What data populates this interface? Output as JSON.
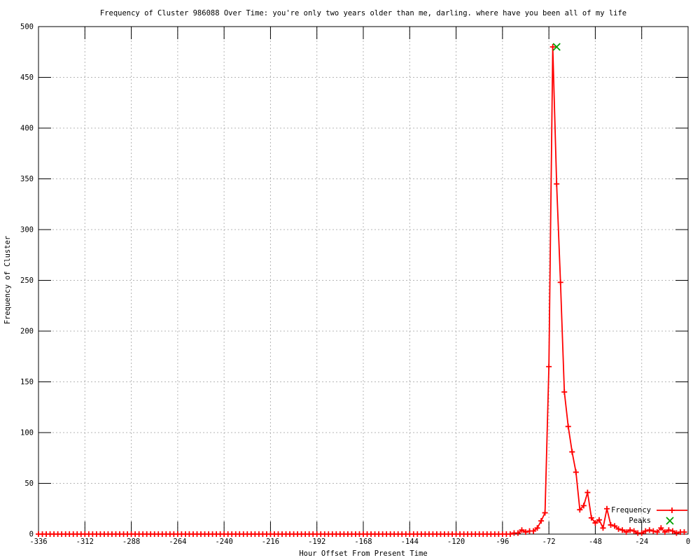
{
  "chart_data": {
    "type": "line",
    "title": "Frequency of Cluster 986088 Over Time: you're only two years older than me, darling. where have you been all of my life",
    "xlabel": "Hour Offset From Present Time",
    "ylabel": "Frequency of Cluster",
    "xlim": [
      -336,
      0
    ],
    "ylim": [
      0,
      500
    ],
    "x_ticks": [
      -336,
      -312,
      -288,
      -264,
      -240,
      -216,
      -192,
      -168,
      -144,
      -120,
      -96,
      -72,
      -48,
      -24,
      0
    ],
    "y_ticks": [
      0,
      50,
      100,
      150,
      200,
      250,
      300,
      350,
      400,
      450,
      500
    ],
    "grid": true,
    "legend_position": "bottom-right-inside",
    "series": [
      {
        "name": "Frequency",
        "color": "#ff0000",
        "marker": "plus",
        "x_start": -336,
        "x_step": 2,
        "values": [
          0,
          0,
          0,
          0,
          0,
          0,
          0,
          0,
          0,
          0,
          0,
          0,
          0,
          0,
          0,
          0,
          0,
          0,
          0,
          0,
          0,
          0,
          0,
          0,
          0,
          0,
          0,
          0,
          0,
          0,
          0,
          0,
          0,
          0,
          0,
          0,
          0,
          0,
          0,
          0,
          0,
          0,
          0,
          0,
          0,
          0,
          0,
          0,
          0,
          0,
          0,
          0,
          0,
          0,
          0,
          0,
          0,
          0,
          0,
          0,
          0,
          0,
          0,
          0,
          0,
          0,
          0,
          0,
          0,
          0,
          0,
          0,
          0,
          0,
          0,
          0,
          0,
          0,
          0,
          0,
          0,
          0,
          0,
          0,
          0,
          0,
          0,
          0,
          0,
          0,
          0,
          0,
          0,
          0,
          0,
          0,
          0,
          0,
          0,
          0,
          0,
          0,
          0,
          0,
          0,
          0,
          0,
          0,
          0,
          0,
          0,
          0,
          0,
          0,
          0,
          0,
          0,
          0,
          0,
          0,
          0,
          0,
          0,
          1,
          1,
          4,
          2,
          3,
          3,
          6,
          13,
          21,
          165,
          480,
          345,
          248,
          140,
          106,
          81,
          61,
          24,
          28,
          41,
          16,
          11,
          14,
          6,
          25,
          9,
          8,
          5,
          4,
          2,
          4,
          3,
          1,
          1,
          3,
          4,
          3,
          2,
          6,
          2,
          4,
          3,
          1,
          2,
          2
        ]
      },
      {
        "name": "Peaks",
        "color": "#00a000",
        "marker": "cross",
        "x": [
          -68
        ],
        "values": [
          480
        ]
      }
    ],
    "peak_annotation": {
      "x": -68,
      "y": 480
    }
  },
  "colors": {
    "background": "#ffffff",
    "axis": "#000000",
    "grid": "#b5b5b5",
    "frequency": "#ff0000",
    "peaks": "#00a000"
  },
  "legend": {
    "frequency_label": "Frequency",
    "peaks_label": "Peaks"
  }
}
